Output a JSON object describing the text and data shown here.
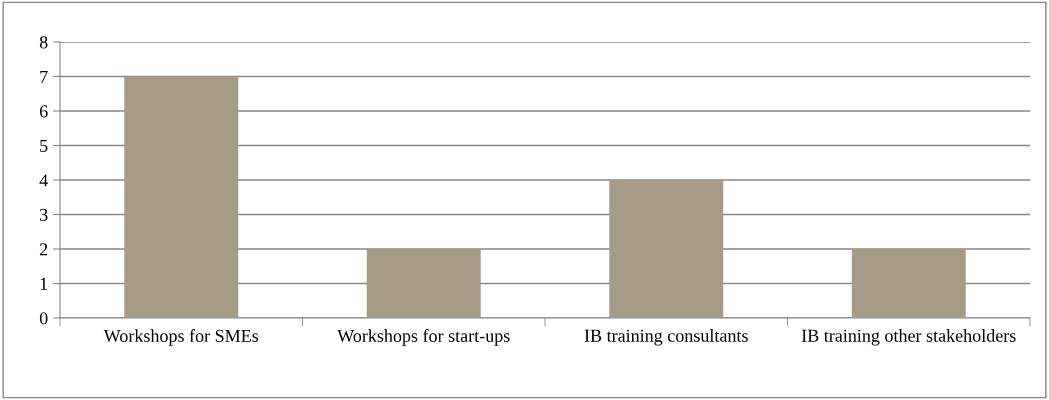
{
  "chart_data": {
    "type": "bar",
    "categories": [
      "Workshops for SMEs",
      "Workshops for start-ups",
      "IB training consultants",
      "IB training other stakeholders"
    ],
    "values": [
      7,
      2,
      4,
      2
    ],
    "color": "#a59b87",
    "ylim": [
      0,
      8
    ],
    "yticks": [
      0,
      1,
      2,
      3,
      4,
      5,
      6,
      7,
      8
    ],
    "grid": "y",
    "legend": false
  }
}
